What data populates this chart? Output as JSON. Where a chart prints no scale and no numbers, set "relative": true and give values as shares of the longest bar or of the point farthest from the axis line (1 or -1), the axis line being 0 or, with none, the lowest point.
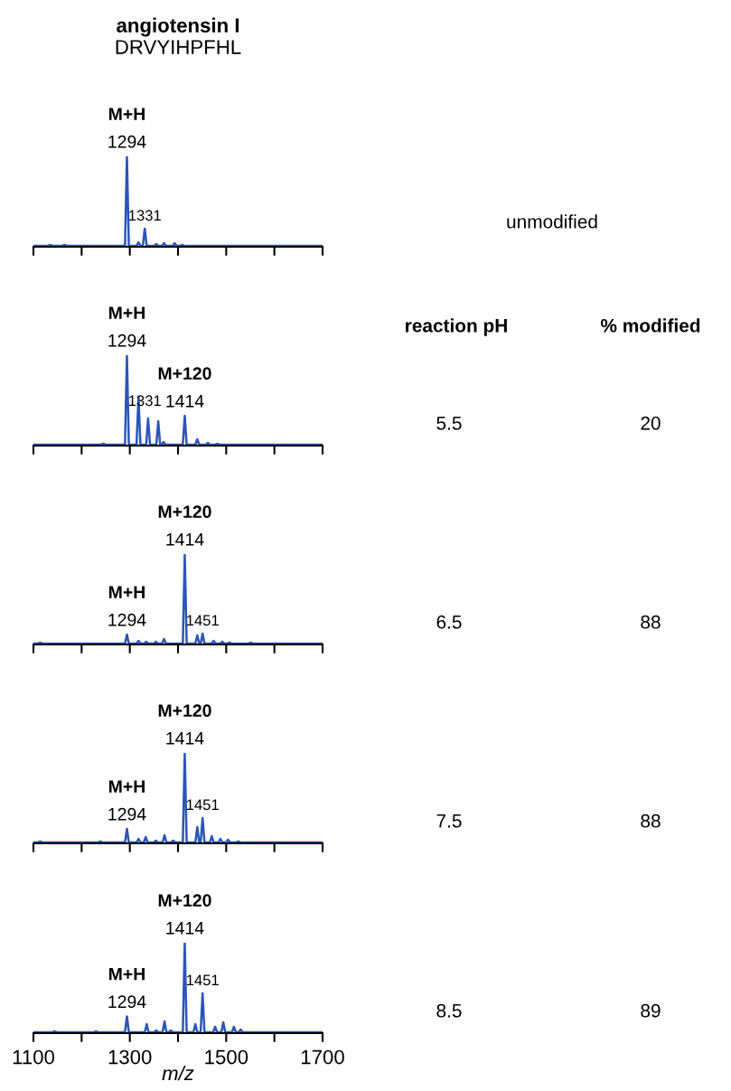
{
  "chart_data": [
    {
      "type": "line",
      "title": "angiotensin I",
      "subtitle": "DRVYIHPFHL",
      "relative": true,
      "xlim": [
        1100,
        1700
      ],
      "xticks": [
        1100,
        {
          "value": 1200,
          "label": null
        },
        1300,
        {
          "value": 1400,
          "label": null
        },
        1500,
        {
          "value": 1600,
          "label": null
        },
        1700
      ],
      "tick_labels": false,
      "series": [
        {
          "color": "#2b55b8",
          "x": [
            1100,
            1130,
            1135,
            1140,
            1160,
            1165,
            1170,
            1200,
            1290,
            1294,
            1298,
            1314,
            1318,
            1322,
            1327,
            1331,
            1335,
            1351,
            1355,
            1359,
            1367,
            1371,
            1375,
            1389,
            1393,
            1397,
            1405,
            1409,
            1413,
            1700
          ],
          "values": [
            0.01,
            0.01,
            0.02,
            0.01,
            0.01,
            0.02,
            0.01,
            0.01,
            0.01,
            1,
            0.01,
            0.01,
            0.05,
            0.01,
            0.01,
            0.2,
            0.01,
            0.01,
            0.03,
            0.01,
            0.01,
            0.04,
            0.01,
            0.01,
            0.04,
            0.01,
            0.01,
            0.02,
            0.01,
            0.01
          ]
        }
      ],
      "annotations": [
        {
          "text": "M+H",
          "x": 1294,
          "y": 1
        },
        {
          "text": "1294",
          "x": 1294,
          "y": 1
        },
        {
          "text": "1331",
          "x": 1331,
          "y": 0.2
        },
        "unmodified"
      ]
    },
    {
      "type": "line",
      "relative": true,
      "xlim": [
        1100,
        1700
      ],
      "xticks": [
        1100,
        {
          "value": 1200,
          "label": null
        },
        1300,
        {
          "value": 1400,
          "label": null
        },
        1500,
        {
          "value": 1600,
          "label": null
        },
        1700
      ],
      "tick_labels": false,
      "series": [
        {
          "color": "#2b55b8",
          "x": [
            1100,
            1240,
            1245,
            1250,
            1290,
            1294,
            1298,
            1314,
            1318,
            1322,
            1334,
            1338,
            1342,
            1355,
            1359,
            1363,
            1366,
            1370,
            1374,
            1410,
            1414,
            1418,
            1436,
            1440,
            1444,
            1458,
            1462,
            1466,
            1478,
            1482,
            1486,
            1700
          ],
          "values": [
            0.01,
            0.01,
            0.02,
            0.01,
            0.01,
            1,
            0.01,
            0.01,
            0.54,
            0.01,
            0.01,
            0.3,
            0.01,
            0.01,
            0.27,
            0.01,
            0.01,
            0.04,
            0.01,
            0.01,
            0.33,
            0.01,
            0.01,
            0.07,
            0.01,
            0.01,
            0.03,
            0.01,
            0.01,
            0.02,
            0.01,
            0.01
          ]
        }
      ],
      "annotations": [
        {
          "text": "M+H",
          "x": 1294,
          "y": 1
        },
        {
          "text": "1294",
          "x": 1294,
          "y": 1
        },
        {
          "text": "1331",
          "x": 1331,
          "y": 0.35
        },
        {
          "text": "M+120",
          "x": 1414,
          "y": 0.33
        },
        {
          "text": "1414",
          "x": 1414,
          "y": 0.33
        },
        "reaction pH",
        "% modified",
        "5.5",
        "20"
      ]
    },
    {
      "type": "line",
      "relative": true,
      "xlim": [
        1100,
        1700
      ],
      "xticks": [
        1100,
        {
          "value": 1200,
          "label": null
        },
        1300,
        {
          "value": 1400,
          "label": null
        },
        1500,
        {
          "value": 1600,
          "label": null
        },
        1700
      ],
      "tick_labels": false,
      "series": [
        {
          "color": "#2b55b8",
          "x": [
            1100,
            1110,
            1114,
            1118,
            1290,
            1294,
            1298,
            1314,
            1318,
            1322,
            1330,
            1334,
            1338,
            1350,
            1354,
            1358,
            1367,
            1371,
            1375,
            1410,
            1414,
            1418,
            1436,
            1440,
            1444,
            1447,
            1451,
            1455,
            1470,
            1474,
            1478,
            1488,
            1492,
            1496,
            1503,
            1507,
            1511,
            1547,
            1551,
            1555,
            1700
          ],
          "values": [
            0.01,
            0.01,
            0.02,
            0.01,
            0.01,
            0.11,
            0.01,
            0.01,
            0.04,
            0.01,
            0.01,
            0.03,
            0.01,
            0.01,
            0.03,
            0.01,
            0.01,
            0.06,
            0.01,
            0.01,
            1,
            0.01,
            0.01,
            0.1,
            0.01,
            0.01,
            0.12,
            0.01,
            0.01,
            0.04,
            0.01,
            0.01,
            0.03,
            0.01,
            0.01,
            0.02,
            0.01,
            0.01,
            0.02,
            0.01,
            0.01
          ]
        }
      ],
      "annotations": [
        {
          "text": "M+120",
          "x": 1414,
          "y": 1
        },
        {
          "text": "1414",
          "x": 1414,
          "y": 1
        },
        {
          "text": "M+H",
          "x": 1294,
          "y": 0.11
        },
        {
          "text": "1294",
          "x": 1294,
          "y": 0.11
        },
        {
          "text": "1451",
          "x": 1451,
          "y": 0.12
        },
        "6.5",
        "88"
      ]
    },
    {
      "type": "line",
      "relative": true,
      "xlim": [
        1100,
        1700
      ],
      "xticks": [
        1100,
        {
          "value": 1200,
          "label": null
        },
        1300,
        {
          "value": 1400,
          "label": null
        },
        1500,
        {
          "value": 1600,
          "label": null
        },
        1700
      ],
      "tick_labels": false,
      "series": [
        {
          "color": "#2b55b8",
          "x": [
            1100,
            1110,
            1114,
            1118,
            1235,
            1239,
            1243,
            1290,
            1294,
            1298,
            1314,
            1318,
            1322,
            1329,
            1333,
            1337,
            1350,
            1354,
            1358,
            1368,
            1372,
            1376,
            1386,
            1390,
            1394,
            1410,
            1414,
            1418,
            1436,
            1440,
            1444,
            1447,
            1451,
            1455,
            1466,
            1470,
            1474,
            1484,
            1488,
            1492,
            1500,
            1504,
            1508,
            1521,
            1525,
            1529,
            1588,
            1592,
            1596,
            1700
          ],
          "values": [
            0.01,
            0.01,
            0.02,
            0.01,
            0.01,
            0.02,
            0.01,
            0.01,
            0.16,
            0.01,
            0.01,
            0.05,
            0.01,
            0.01,
            0.07,
            0.01,
            0.01,
            0.03,
            0.01,
            0.01,
            0.09,
            0.01,
            0.01,
            0.03,
            0.01,
            0.01,
            1,
            0.01,
            0.01,
            0.18,
            0.01,
            0.01,
            0.28,
            0.01,
            0.01,
            0.08,
            0.01,
            0.01,
            0.05,
            0.01,
            0.01,
            0.04,
            0.01,
            0.01,
            0.02,
            0.01,
            0.01,
            0.01,
            0.01,
            0.01
          ]
        }
      ],
      "annotations": [
        {
          "text": "M+120",
          "x": 1414,
          "y": 1
        },
        {
          "text": "1414",
          "x": 1414,
          "y": 1
        },
        {
          "text": "M+H",
          "x": 1294,
          "y": 0.16
        },
        {
          "text": "1294",
          "x": 1294,
          "y": 0.16
        },
        {
          "text": "1451",
          "x": 1451,
          "y": 0.28
        },
        "7.5",
        "88"
      ]
    },
    {
      "type": "line",
      "relative": true,
      "xlim": [
        1100,
        1700
      ],
      "xticks": [
        1100,
        {
          "value": 1200,
          "label": null
        },
        1300,
        {
          "value": 1400,
          "label": null
        },
        1500,
        {
          "value": 1600,
          "label": null
        },
        1700
      ],
      "tick_labels": "x",
      "xlabel": "m/z",
      "series": [
        {
          "color": "#2b55b8",
          "x": [
            1100,
            1140,
            1144,
            1148,
            1226,
            1230,
            1234,
            1290,
            1294,
            1298,
            1331,
            1335,
            1339,
            1351,
            1355,
            1359,
            1368,
            1372,
            1376,
            1381,
            1385,
            1389,
            1410,
            1414,
            1418,
            1432,
            1436,
            1440,
            1447,
            1451,
            1455,
            1473,
            1477,
            1481,
            1490,
            1494,
            1498,
            1512,
            1516,
            1520,
            1526,
            1530,
            1534,
            1700
          ],
          "values": [
            0.01,
            0.01,
            0.02,
            0.01,
            0.01,
            0.02,
            0.01,
            0.01,
            0.185,
            0.01,
            0.01,
            0.1,
            0.01,
            0.01,
            0.03,
            0.01,
            0.01,
            0.13,
            0.01,
            0.01,
            0.03,
            0.01,
            0.01,
            1,
            0.01,
            0.01,
            0.1,
            0.01,
            0.01,
            0.44,
            0.01,
            0.01,
            0.07,
            0.01,
            0.01,
            0.12,
            0.01,
            0.01,
            0.07,
            0.01,
            0.01,
            0.04,
            0.01,
            0.01
          ]
        }
      ],
      "annotations": [
        {
          "text": "M+120",
          "x": 1414,
          "y": 1
        },
        {
          "text": "1414",
          "x": 1414,
          "y": 1
        },
        {
          "text": "M+H",
          "x": 1294,
          "y": 0.185
        },
        {
          "text": "1294",
          "x": 1294,
          "y": 0.185
        },
        {
          "text": "1451",
          "x": 1451,
          "y": 0.44
        },
        "8.5",
        "89"
      ]
    }
  ]
}
